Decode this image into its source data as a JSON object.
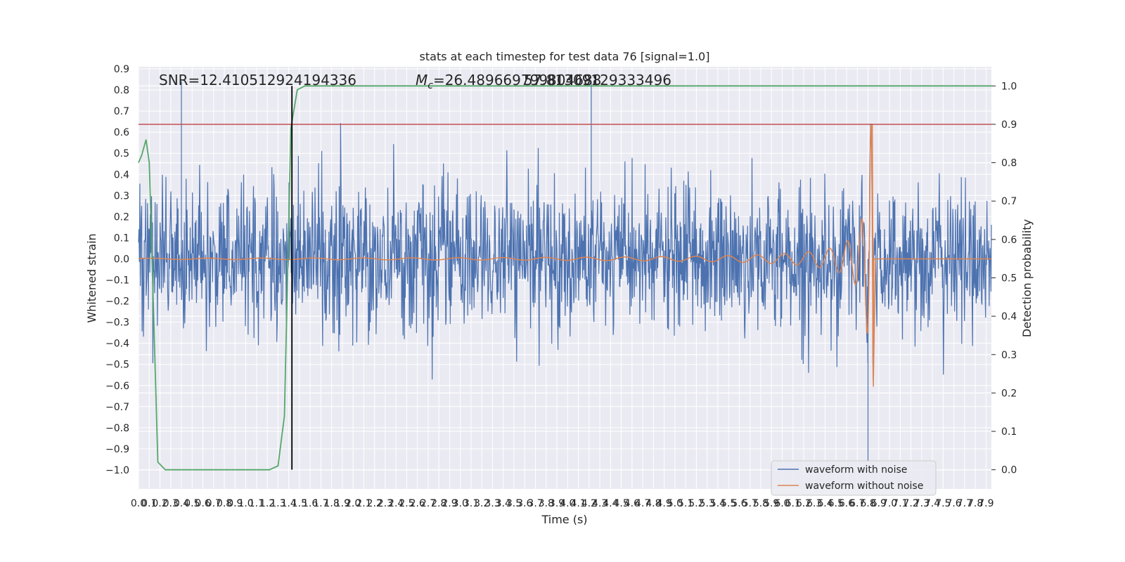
{
  "chart_data": {
    "type": "line",
    "title": "stats at each timestep for test data 76 [signal=1.0]",
    "xlabel": "Time (s)",
    "ylabel_left": "Whitened strain",
    "ylabel_right": "Detection probability",
    "xlim": [
      0.0,
      7.95
    ],
    "ylim_left": [
      -1.09,
      0.91
    ],
    "ylim_right": [
      -0.05,
      1.05
    ],
    "grid": true,
    "x_ticks": [
      "0.0",
      "0.1",
      "0.2",
      "0.3",
      "0.4",
      "0.5",
      "0.6",
      "0.7",
      "0.8",
      "0.9",
      "1.0",
      "1.1",
      "1.2",
      "1.3",
      "1.4",
      "1.5",
      "1.6",
      "1.7",
      "1.8",
      "1.9",
      "2.0",
      "2.1",
      "2.2",
      "2.3",
      "2.4",
      "2.5",
      "2.6",
      "2.7",
      "2.8",
      "2.9",
      "3.0",
      "3.1",
      "3.2",
      "3.3",
      "3.4",
      "3.5",
      "3.6",
      "3.7",
      "3.8",
      "3.9",
      "4.0",
      "4.1",
      "4.2",
      "4.3",
      "4.4",
      "4.5",
      "4.6",
      "4.7",
      "4.8",
      "4.9",
      "5.0",
      "5.1",
      "5.2",
      "5.3",
      "5.4",
      "5.5",
      "5.6",
      "5.7",
      "5.8",
      "5.9",
      "6.0",
      "6.1",
      "6.2",
      "6.3",
      "6.4",
      "6.5",
      "6.6",
      "6.7",
      "6.8",
      "6.9",
      "7.0",
      "7.1",
      "7.2",
      "7.3",
      "7.4",
      "7.5",
      "7.6",
      "7.7",
      "7.8",
      "7.9"
    ],
    "y_ticks_left": [
      "0.9",
      "0.8",
      "0.7",
      "0.6",
      "0.5",
      "0.4",
      "0.3",
      "0.2",
      "0.1",
      "0.0",
      "−0.1",
      "−0.2",
      "−0.3",
      "−0.4",
      "−0.5",
      "−0.6",
      "−0.7",
      "−0.8",
      "−0.9",
      "−1.0"
    ],
    "y_ticks_right": [
      "1.0",
      "0.9",
      "0.8",
      "0.7",
      "0.6",
      "0.5",
      "0.4",
      "0.3",
      "0.2",
      "0.1",
      "0.0"
    ],
    "annotations": {
      "snr": "SNR=12.410512924194336",
      "mc": "=26.489669799804688",
      "mc_symbol": "M",
      "mc_sub": "c",
      "overlap": "57.81309129333496"
    },
    "threshold": {
      "value": 0.9,
      "color": "#c44e52"
    },
    "event_time": 1.43,
    "series": [
      {
        "name": "waveform with noise",
        "color": "#4c72b0",
        "noise_std": 0.17,
        "peak": 0.84,
        "trough": -0.96,
        "peak_times": [
          0.4,
          4.22
        ],
        "trough_times": [
          6.8
        ]
      },
      {
        "name": "waveform without noise",
        "color": "#dd8452",
        "merger_time": 6.85,
        "peak_amplitude": 0.64,
        "trough_amplitude": -0.57,
        "start_amplitude": 0.003
      },
      {
        "name": "detection probability",
        "color": "#55a868",
        "x": [
          0.0,
          0.03,
          0.07,
          0.1,
          0.18,
          0.25,
          0.35,
          0.5,
          0.7,
          0.9,
          1.1,
          1.22,
          1.3,
          1.36,
          1.42,
          1.48,
          1.55,
          1.6,
          1.7,
          7.95
        ],
        "y": [
          0.8,
          0.82,
          0.86,
          0.8,
          0.02,
          0.0,
          0.0,
          0.0,
          0.0,
          0.0,
          0.0,
          0.0,
          0.01,
          0.14,
          0.89,
          0.99,
          1.0,
          1.0,
          1.0,
          1.0
        ]
      }
    ],
    "legend": {
      "location": "lower-right",
      "entries": [
        "waveform with noise",
        "waveform without noise"
      ]
    }
  }
}
